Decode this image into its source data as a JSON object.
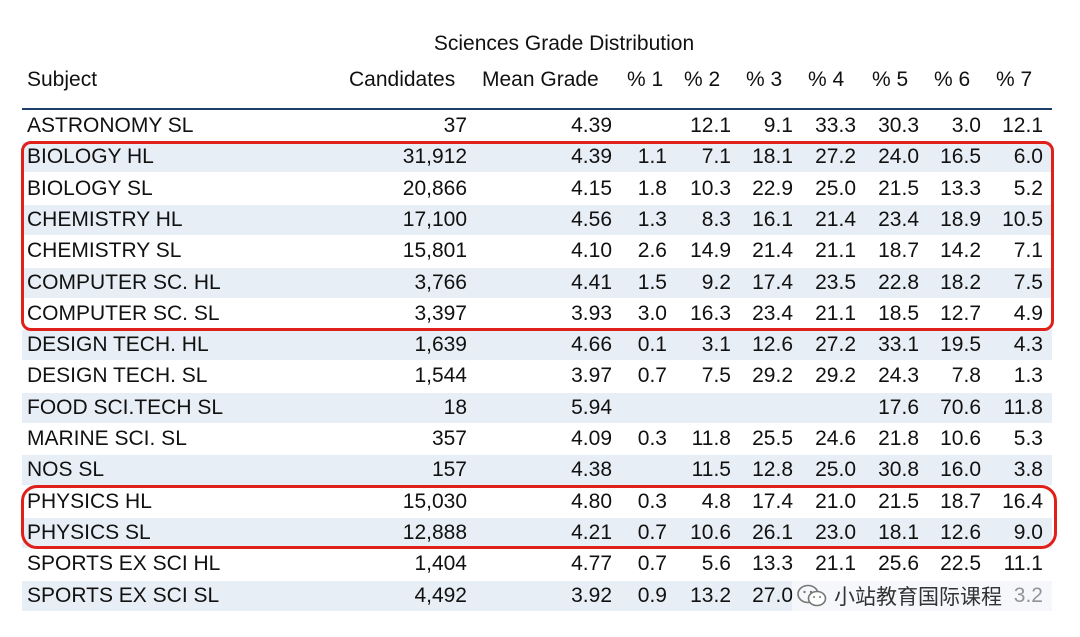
{
  "title": "Sciences Grade Distribution",
  "columns": [
    "Subject",
    "Candidates",
    "Mean Grade",
    "% 1",
    "% 2",
    "% 3",
    "% 4",
    "% 5",
    "% 6",
    "% 7"
  ],
  "rows": [
    {
      "subject": "ASTRONOMY SL",
      "candidates": "37",
      "mean": "4.39",
      "p1": "",
      "p2": "12.1",
      "p3": "9.1",
      "p4": "33.3",
      "p5": "30.3",
      "p6": "3.0",
      "p7": "12.1"
    },
    {
      "subject": "BIOLOGY HL",
      "candidates": "31,912",
      "mean": "4.39",
      "p1": "1.1",
      "p2": "7.1",
      "p3": "18.1",
      "p4": "27.2",
      "p5": "24.0",
      "p6": "16.5",
      "p7": "6.0"
    },
    {
      "subject": "BIOLOGY SL",
      "candidates": "20,866",
      "mean": "4.15",
      "p1": "1.8",
      "p2": "10.3",
      "p3": "22.9",
      "p4": "25.0",
      "p5": "21.5",
      "p6": "13.3",
      "p7": "5.2"
    },
    {
      "subject": "CHEMISTRY HL",
      "candidates": "17,100",
      "mean": "4.56",
      "p1": "1.3",
      "p2": "8.3",
      "p3": "16.1",
      "p4": "21.4",
      "p5": "23.4",
      "p6": "18.9",
      "p7": "10.5"
    },
    {
      "subject": "CHEMISTRY SL",
      "candidates": "15,801",
      "mean": "4.10",
      "p1": "2.6",
      "p2": "14.9",
      "p3": "21.4",
      "p4": "21.1",
      "p5": "18.7",
      "p6": "14.2",
      "p7": "7.1"
    },
    {
      "subject": "COMPUTER SC. HL",
      "candidates": "3,766",
      "mean": "4.41",
      "p1": "1.5",
      "p2": "9.2",
      "p3": "17.4",
      "p4": "23.5",
      "p5": "22.8",
      "p6": "18.2",
      "p7": "7.5"
    },
    {
      "subject": "COMPUTER SC. SL",
      "candidates": "3,397",
      "mean": "3.93",
      "p1": "3.0",
      "p2": "16.3",
      "p3": "23.4",
      "p4": "21.1",
      "p5": "18.5",
      "p6": "12.7",
      "p7": "4.9"
    },
    {
      "subject": "DESIGN TECH. HL",
      "candidates": "1,639",
      "mean": "4.66",
      "p1": "0.1",
      "p2": "3.1",
      "p3": "12.6",
      "p4": "27.2",
      "p5": "33.1",
      "p6": "19.5",
      "p7": "4.3"
    },
    {
      "subject": "DESIGN TECH. SL",
      "candidates": "1,544",
      "mean": "3.97",
      "p1": "0.7",
      "p2": "7.5",
      "p3": "29.2",
      "p4": "29.2",
      "p5": "24.3",
      "p6": "7.8",
      "p7": "1.3"
    },
    {
      "subject": "FOOD SCI.TECH SL",
      "candidates": "18",
      "mean": "5.94",
      "p1": "",
      "p2": "",
      "p3": "",
      "p4": "",
      "p5": "17.6",
      "p6": "70.6",
      "p7": "11.8"
    },
    {
      "subject": "MARINE SCI. SL",
      "candidates": "357",
      "mean": "4.09",
      "p1": "0.3",
      "p2": "11.8",
      "p3": "25.5",
      "p4": "24.6",
      "p5": "21.8",
      "p6": "10.6",
      "p7": "5.3"
    },
    {
      "subject": "NOS SL",
      "candidates": "157",
      "mean": "4.38",
      "p1": "",
      "p2": "11.5",
      "p3": "12.8",
      "p4": "25.0",
      "p5": "30.8",
      "p6": "16.0",
      "p7": "3.8"
    },
    {
      "subject": "PHYSICS HL",
      "candidates": "15,030",
      "mean": "4.80",
      "p1": "0.3",
      "p2": "4.8",
      "p3": "17.4",
      "p4": "21.0",
      "p5": "21.5",
      "p6": "18.7",
      "p7": "16.4"
    },
    {
      "subject": "PHYSICS SL",
      "candidates": "12,888",
      "mean": "4.21",
      "p1": "0.7",
      "p2": "10.6",
      "p3": "26.1",
      "p4": "23.0",
      "p5": "18.1",
      "p6": "12.6",
      "p7": "9.0"
    },
    {
      "subject": "SPORTS EX SCI HL",
      "candidates": "1,404",
      "mean": "4.77",
      "p1": "0.7",
      "p2": "5.6",
      "p3": "13.3",
      "p4": "21.1",
      "p5": "25.6",
      "p6": "22.5",
      "p7": "11.1"
    },
    {
      "subject": "SPORTS EX SCI SL",
      "candidates": "4,492",
      "mean": "3.92",
      "p1": "0.9",
      "p2": "13.2",
      "p3": "27.0",
      "p4": "",
      "p5": "",
      "p6": "",
      "p7": "3.2"
    }
  ],
  "watermark": {
    "text": "小站教育国际课程",
    "icon": "wechat-icon"
  },
  "colors": {
    "highlight": "#e0201b",
    "row_shade": "#e8eef5",
    "header_rule": "#1f3f6b"
  }
}
